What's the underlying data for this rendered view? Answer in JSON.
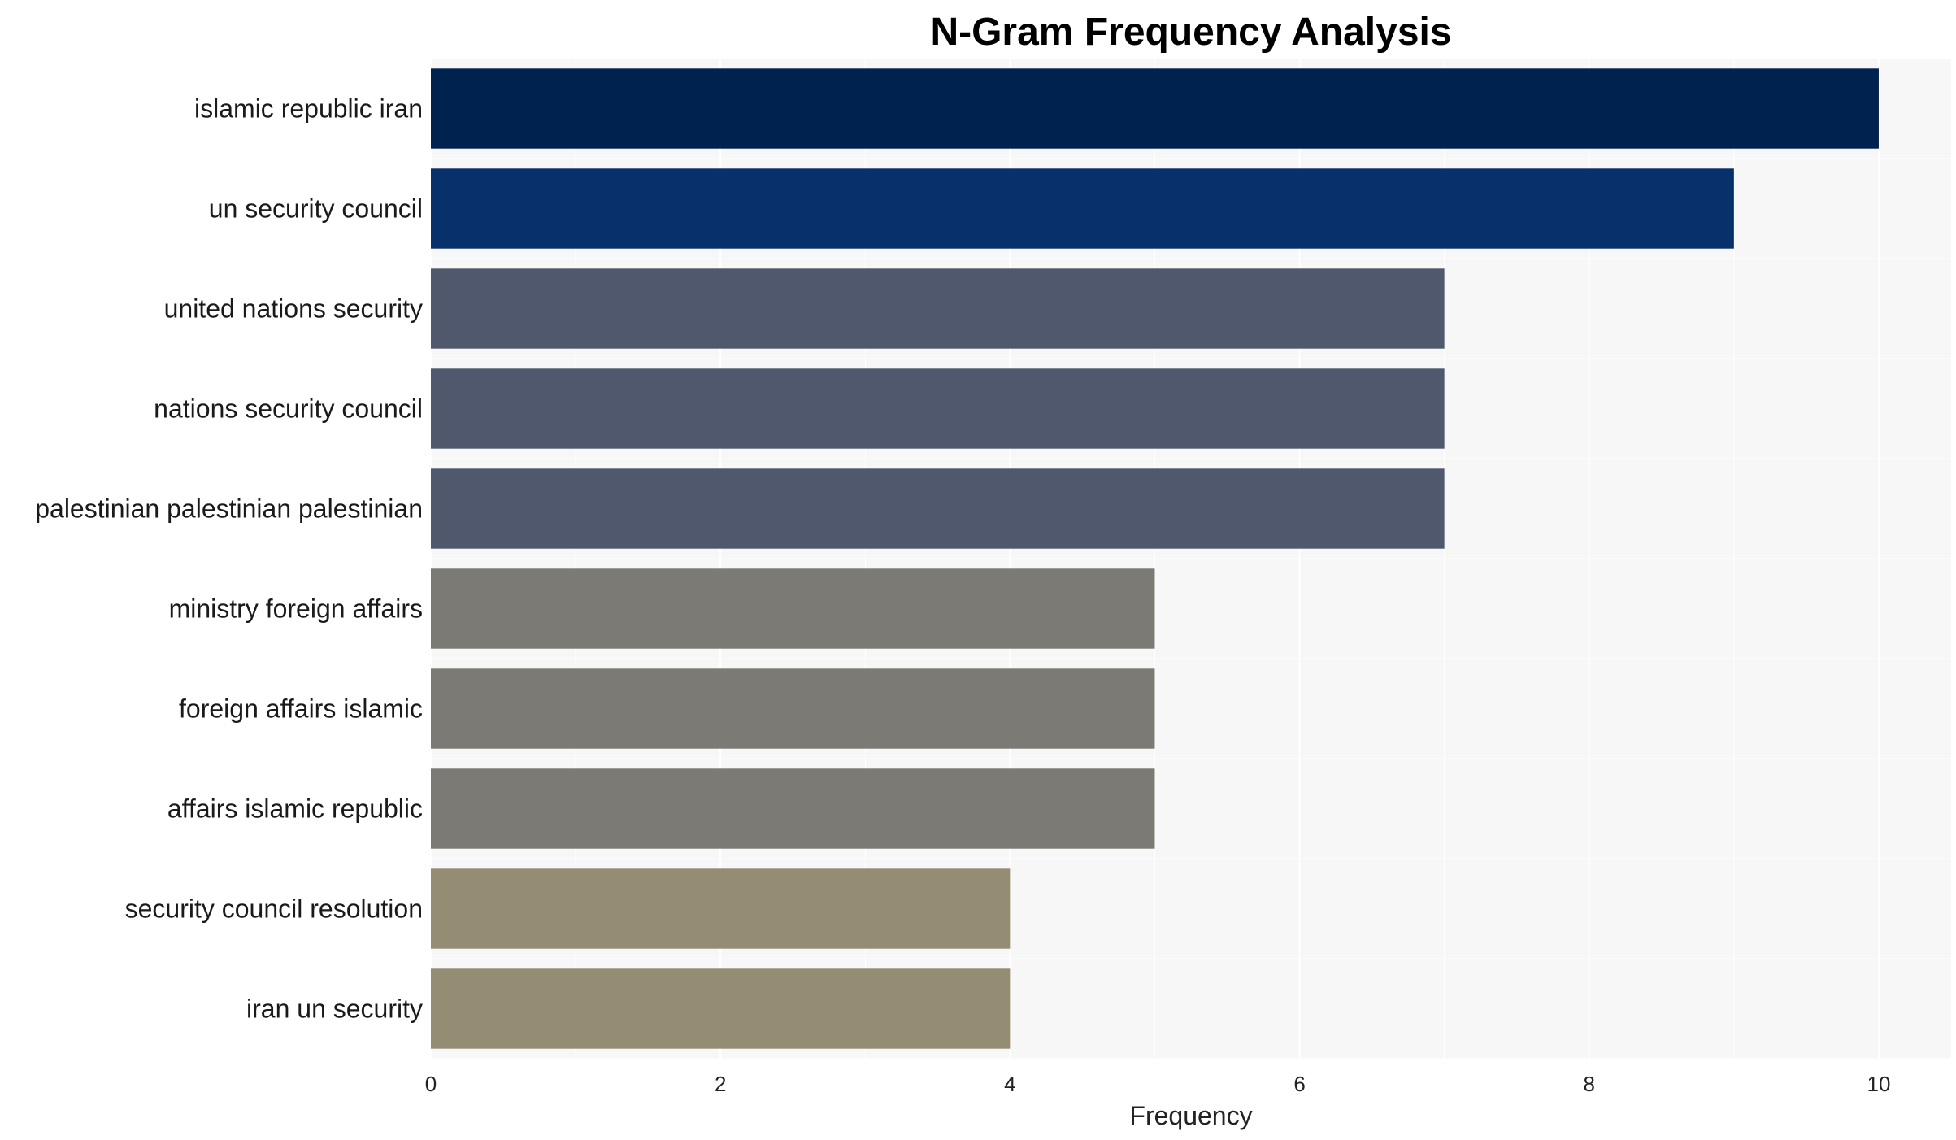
{
  "chart_data": {
    "type": "bar",
    "orientation": "horizontal",
    "title": "N-Gram Frequency Analysis",
    "xlabel": "Frequency",
    "ylabel": "",
    "xlim": [
      0,
      10.5
    ],
    "xticks": [
      0,
      2,
      4,
      6,
      8,
      10
    ],
    "grid": true,
    "categories": [
      "islamic republic iran",
      "un security council",
      "united nations security",
      "nations security council",
      "palestinian palestinian palestinian",
      "ministry foreign affairs",
      "foreign affairs islamic",
      "affairs islamic republic",
      "security council resolution",
      "iran un security"
    ],
    "values": [
      10,
      9,
      7,
      7,
      7,
      5,
      5,
      5,
      4,
      4
    ],
    "colors": [
      "#00224e",
      "#08306b",
      "#4f586c",
      "#4f586c",
      "#4f586c",
      "#7b7a74",
      "#7b7a74",
      "#7b7a74",
      "#948d73",
      "#948d73"
    ]
  },
  "style": {
    "plot_background": "#f7f7f7",
    "grid_color": "#ffffff"
  }
}
